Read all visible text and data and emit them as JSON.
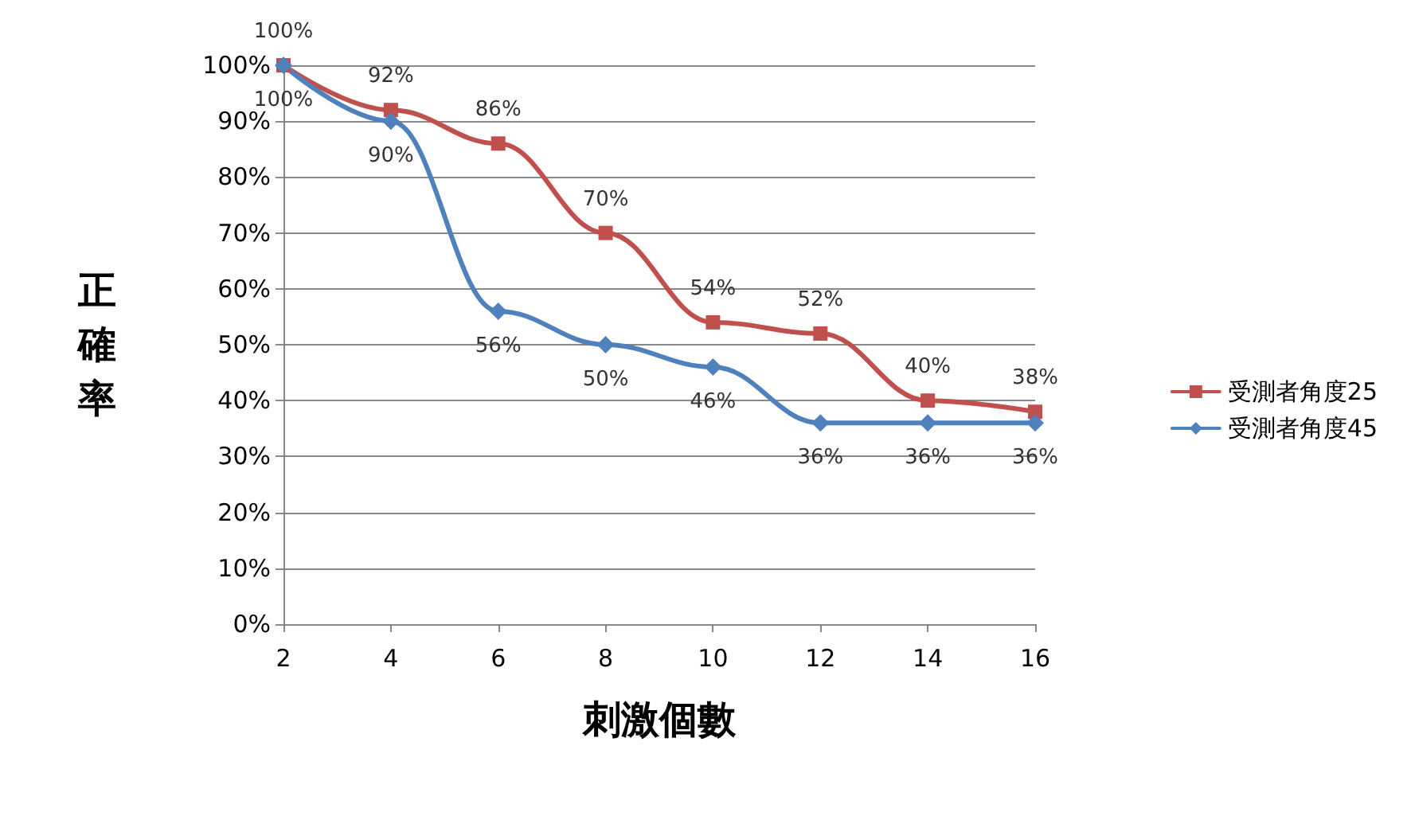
{
  "chart_data": {
    "type": "line",
    "xlabel": "刺激個數",
    "ylabel": "正確率",
    "x": [
      2,
      4,
      6,
      8,
      10,
      12,
      14,
      16
    ],
    "xlim": [
      2,
      16
    ],
    "xticks": [
      2,
      4,
      6,
      8,
      10,
      12,
      14,
      16
    ],
    "ylim": [
      0,
      100
    ],
    "yticks": [
      {
        "value": 0,
        "label": "0%"
      },
      {
        "value": 10,
        "label": "10%"
      },
      {
        "value": 20,
        "label": "20%"
      },
      {
        "value": 30,
        "label": "30%"
      },
      {
        "value": 40,
        "label": "40%"
      },
      {
        "value": 50,
        "label": "50%"
      },
      {
        "value": 60,
        "label": "60%"
      },
      {
        "value": 70,
        "label": "70%"
      },
      {
        "value": 80,
        "label": "80%"
      },
      {
        "value": 90,
        "label": "90%"
      },
      {
        "value": 100,
        "label": "100%"
      }
    ],
    "grid": "y",
    "legend": "right",
    "line_style": "solid",
    "series": [
      {
        "name": "受測者角度25",
        "color": "#c0504d",
        "marker": "square",
        "values": [
          100,
          92,
          86,
          70,
          54,
          52,
          40,
          38
        ],
        "value_labels": [
          "100%",
          "92%",
          "86%",
          "70%",
          "54%",
          "52%",
          "40%",
          "38%"
        ]
      },
      {
        "name": "受測者角度45",
        "color": "#4f81bd",
        "marker": "diamond",
        "values": [
          100,
          90,
          56,
          50,
          46,
          36,
          36,
          36
        ],
        "value_labels": [
          "100%",
          "90%",
          "56%",
          "50%",
          "46%",
          "36%",
          "36%",
          "36%"
        ]
      }
    ]
  }
}
